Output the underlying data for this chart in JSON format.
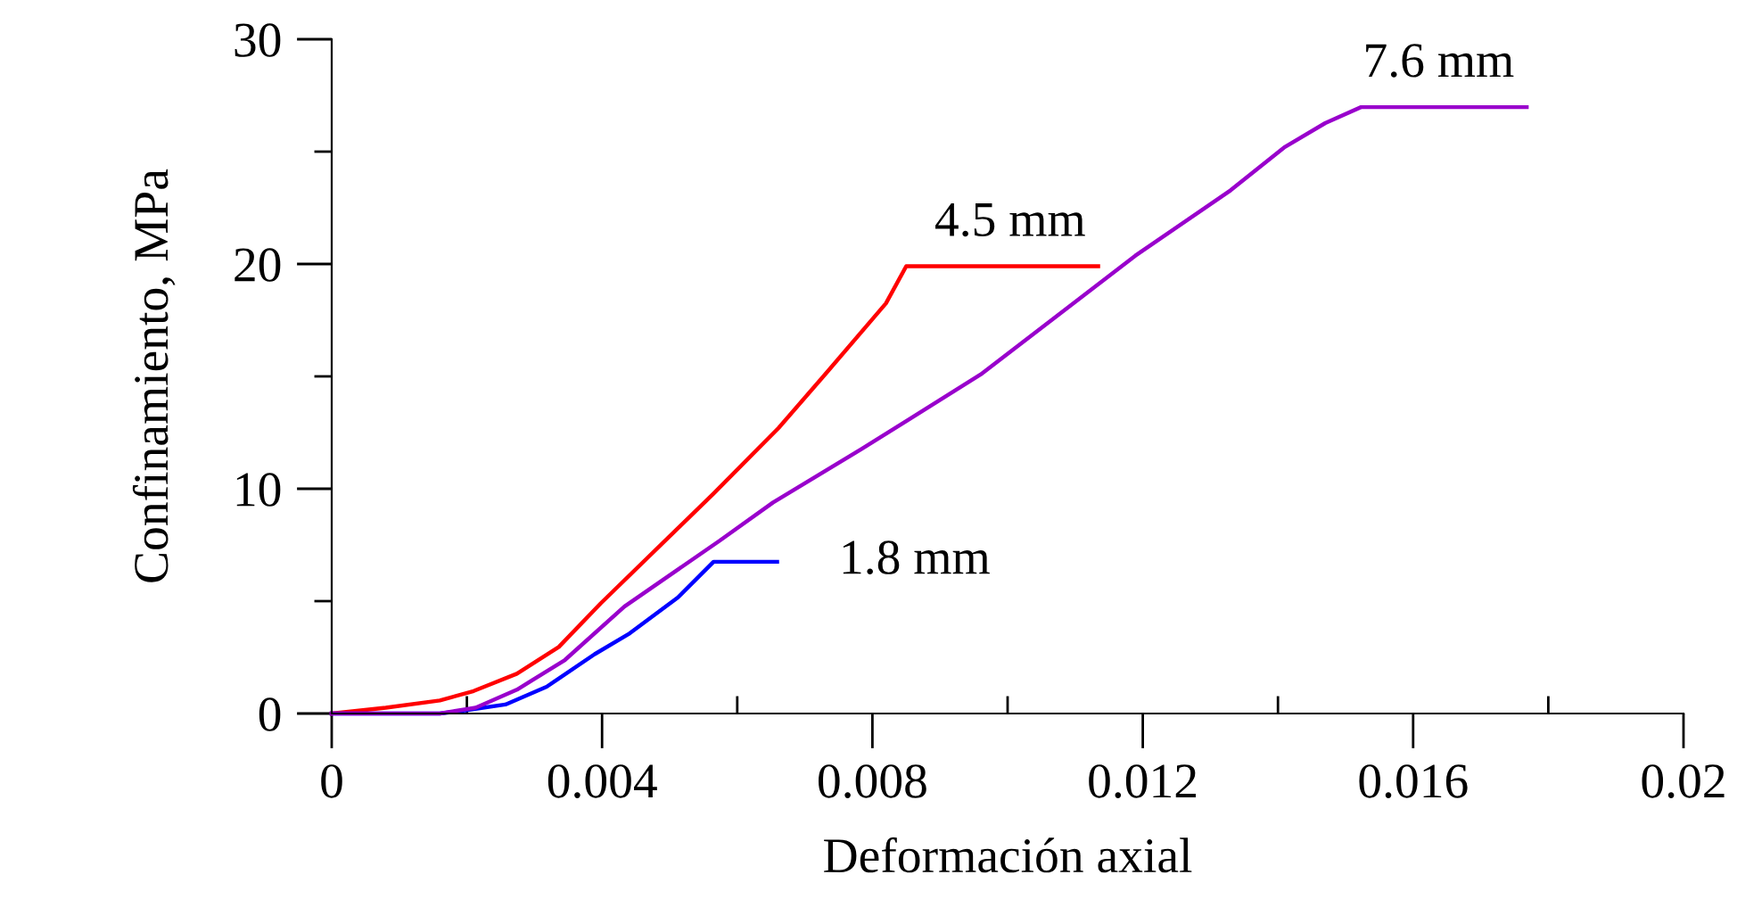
{
  "chart_data": {
    "type": "line",
    "xlabel": "Deformación axial",
    "ylabel": "Confinamiento, MPa",
    "xlim": [
      0,
      0.02
    ],
    "ylim": [
      0,
      30
    ],
    "xticks": [
      0,
      {
        "value": 0.002,
        "label": null
      },
      0.004,
      {
        "value": 0.006,
        "label": null
      },
      0.008,
      {
        "value": 0.01,
        "label": null
      },
      0.012,
      {
        "value": 0.014,
        "label": null
      },
      0.016,
      {
        "value": 0.018,
        "label": null
      },
      0.02
    ],
    "yticks": [
      0,
      {
        "value": 5,
        "label": null
      },
      10,
      {
        "value": 15,
        "label": null
      },
      20,
      {
        "value": 25,
        "label": null
      },
      30
    ],
    "grid": false,
    "legend": false,
    "marker": "none",
    "line_style": "solid",
    "series": [
      {
        "name": "4.5 mm",
        "color": "#ff0000",
        "x": [
          0,
          0.0008,
          0.0016,
          0.0021,
          0.00274,
          0.00336,
          0.00398,
          0.00565,
          0.00661,
          0.00732,
          0.0082,
          0.0085,
          0.01134
        ],
        "values": [
          0,
          0.26,
          0.58,
          1.0,
          1.77,
          2.96,
          4.9,
          9.79,
          12.7,
          15.16,
          18.25,
          19.9,
          19.9
        ]
      },
      {
        "name": "1.8 mm",
        "color": "#0000ff",
        "x": [
          0,
          0.0016,
          0.00195,
          0.00257,
          0.00318,
          0.00389,
          0.00441,
          0.00512,
          0.00565,
          0.00659
        ],
        "values": [
          0,
          0,
          0.13,
          0.4,
          1.19,
          2.64,
          3.57,
          5.16,
          6.75,
          6.75
        ]
      },
      {
        "name": "7.6 mm",
        "color": "#9900cc",
        "x": [
          0,
          0.0016,
          0.00213,
          0.00274,
          0.00345,
          0.00433,
          0.00573,
          0.00653,
          0.00784,
          0.0096,
          0.01189,
          0.0133,
          0.01409,
          0.0147,
          0.01523,
          0.01768
        ],
        "values": [
          0,
          0,
          0.26,
          1.06,
          2.38,
          4.76,
          7.67,
          9.39,
          11.77,
          15.08,
          20.37,
          23.28,
          25.18,
          26.27,
          26.98,
          26.98
        ]
      }
    ]
  }
}
